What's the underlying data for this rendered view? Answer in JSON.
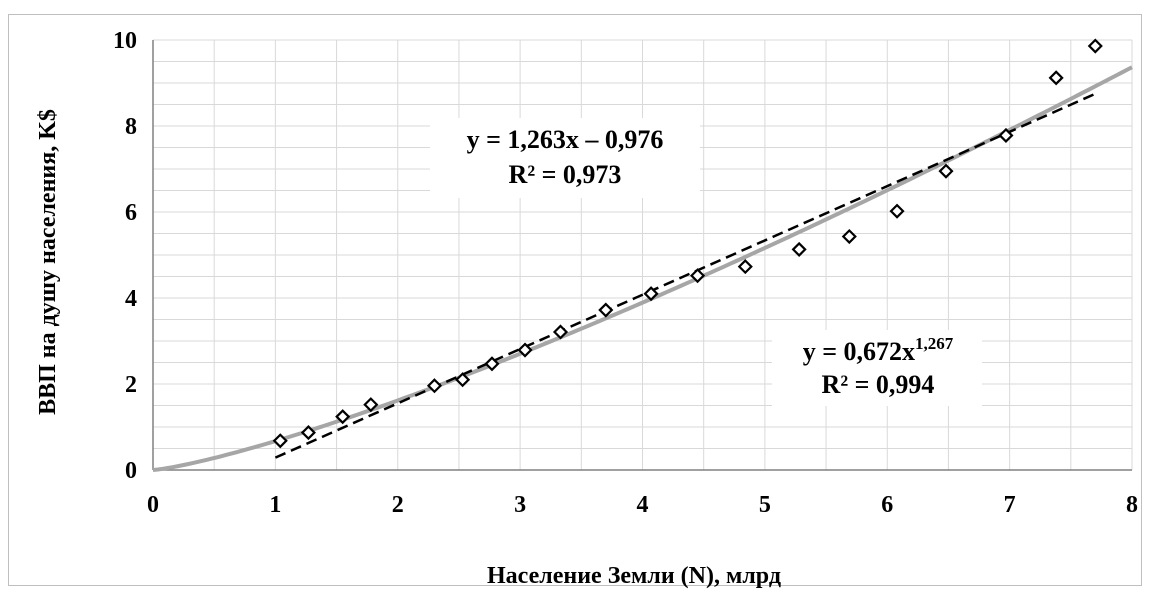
{
  "chart_data": {
    "type": "scatter",
    "xlabel": "Население Земли (N), млрд",
    "ylabel": "ВВП на душу населения, K$",
    "xlim": [
      0,
      8
    ],
    "ylim": [
      0,
      10
    ],
    "x_ticks": [
      "0",
      "1",
      "2",
      "3",
      "4",
      "5",
      "6",
      "7",
      "8"
    ],
    "y_ticks": [
      "0",
      "2",
      "4",
      "6",
      "8",
      "10"
    ],
    "grid": true,
    "points": {
      "x": [
        1.04,
        1.27,
        1.55,
        1.78,
        2.3,
        2.53,
        2.77,
        3.04,
        3.33,
        3.7,
        4.07,
        4.45,
        4.84,
        5.28,
        5.69,
        6.08,
        6.48,
        6.97,
        7.38,
        7.7
      ],
      "y": [
        0.68,
        0.87,
        1.24,
        1.52,
        1.96,
        2.1,
        2.47,
        2.79,
        3.21,
        3.72,
        4.1,
        4.52,
        4.73,
        5.13,
        5.43,
        6.02,
        6.95,
        7.78,
        9.12,
        9.86
      ]
    },
    "linear_fit": {
      "slope": 1.263,
      "intercept": -0.976,
      "x_range": [
        1.0,
        7.7
      ]
    },
    "power_fit": {
      "coef": 0.672,
      "exponent": 1.267,
      "x_range": [
        0,
        8
      ]
    },
    "annotations": {
      "linear_eq": "y = 1,263x – 0,976",
      "linear_r2": "R² = 0,973",
      "power_eq_base": "y = 0,672x",
      "power_eq_exp": "1,267",
      "power_r2": "R² = 0,994"
    },
    "colors": {
      "marker": "#000000",
      "linear_line": "#000000",
      "power_line": "#a6a6a6",
      "grid": "#d9d9d9",
      "axis": "#808080"
    }
  }
}
